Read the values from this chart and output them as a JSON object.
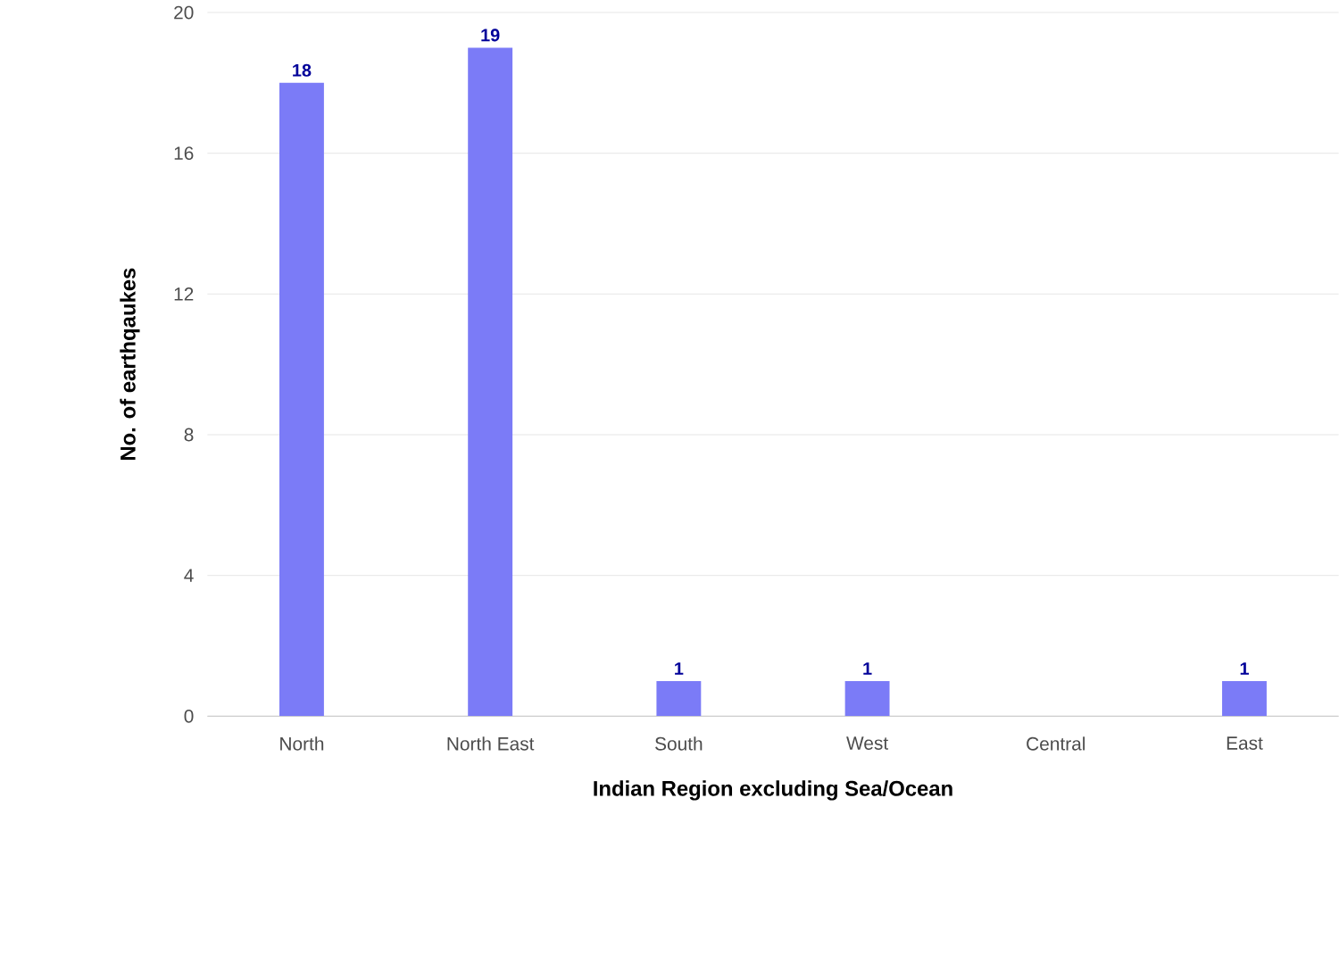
{
  "chart_data": {
    "type": "bar",
    "xlabel": "Indian Region excluding Sea/Ocean",
    "ylabel": "No. of earthqaukes",
    "categories": [
      "North",
      "North East",
      "South",
      "West",
      "Central",
      "East"
    ],
    "values": [
      18,
      19,
      1,
      1,
      0,
      1
    ],
    "value_labels": [
      "18",
      "19",
      "1",
      "1",
      null,
      "1"
    ],
    "color": "#7b7bf7",
    "ylim": [
      0,
      20
    ],
    "yticks": [
      0,
      4,
      8,
      12,
      16,
      20
    ],
    "grid": "y"
  }
}
